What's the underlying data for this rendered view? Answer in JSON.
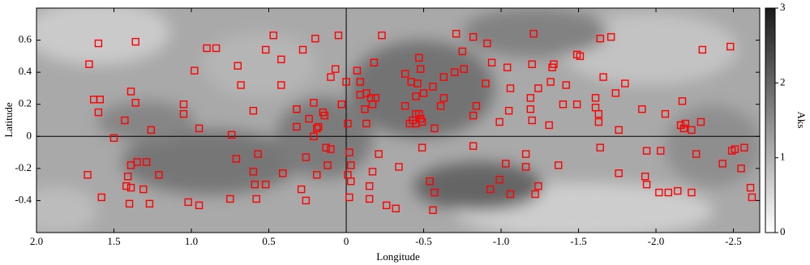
{
  "chart_data": {
    "type": "scatter",
    "x_label": "Longitude",
    "y_label": "Latitude",
    "xlim": [
      2.0,
      -2.67
    ],
    "ylim": [
      -0.6,
      0.8
    ],
    "xticks": [
      {
        "value": 2.0,
        "label": "2.0"
      },
      1.5,
      {
        "value": 1.0,
        "label": "1.0"
      },
      0.5,
      0,
      -0.5,
      {
        "value": -1.0,
        "label": "-1.0"
      },
      -1.5,
      {
        "value": -2.0,
        "label": "-2.0"
      },
      -2.5
    ],
    "yticks": [
      -0.4,
      -0.2,
      0,
      0.2,
      0.4,
      0.6
    ],
    "colorbar_label": "Aks",
    "clim": [
      0,
      3
    ],
    "colorbar_ticks": [
      0,
      1,
      2,
      3
    ],
    "series": [
      {
        "color": "#ff0000",
        "x": [
          1.66,
          1.6,
          1.63,
          1.59,
          1.6,
          1.67,
          1.58,
          1.5,
          1.43,
          1.39,
          1.36,
          1.36,
          1.35,
          1.29,
          1.41,
          1.39,
          1.39,
          1.42,
          1.31,
          1.4,
          1.27,
          1.21,
          1.26,
          0.98,
          1.05,
          1.05,
          0.95,
          1.02,
          0.95,
          0.9,
          0.84,
          0.7,
          0.68,
          0.74,
          0.71,
          0.75,
          0.6,
          0.57,
          0.6,
          0.59,
          0.58,
          0.52,
          0.52,
          0.47,
          0.42,
          0.42,
          0.41,
          0.32,
          0.28,
          0.2,
          0.32,
          0.29,
          0.26,
          0.24,
          0.21,
          0.26,
          0.19,
          0.15,
          0.18,
          0.21,
          0.14,
          0.12,
          0.1,
          0.1,
          0.07,
          0.05,
          0.03,
          0.13,
          0.19,
          0.0,
          -0.01,
          -0.01,
          -0.02,
          -0.02,
          -0.03,
          -0.03,
          -0.07,
          -0.09,
          -0.09,
          -0.13,
          -0.12,
          -0.13,
          -0.17,
          -0.16,
          -0.19,
          -0.21,
          -0.18,
          -0.23,
          -0.15,
          -0.15,
          -0.17,
          -0.26,
          -0.32,
          -0.34,
          -0.38,
          -0.38,
          -0.42,
          -0.45,
          -0.46,
          -0.45,
          -0.43,
          -0.48,
          -0.45,
          -0.41,
          -0.47,
          -0.47,
          -0.48,
          -0.5,
          -0.49,
          -0.49,
          -0.56,
          -0.57,
          -0.61,
          -0.63,
          -0.63,
          -0.54,
          -0.57,
          -0.56,
          -0.71,
          -0.75,
          -0.76,
          -0.7,
          -0.82,
          -0.82,
          -0.82,
          -0.84,
          -0.9,
          -0.91,
          -0.94,
          -0.93,
          -0.99,
          -1.03,
          -1.05,
          -1.04,
          -1.06,
          -1.06,
          -0.99,
          -1.16,
          -1.16,
          -1.19,
          -1.2,
          -1.19,
          -1.21,
          -1.2,
          -1.24,
          -1.22,
          -1.24,
          -1.31,
          -1.32,
          -1.33,
          -1.34,
          -1.37,
          -1.4,
          -1.42,
          -1.49,
          -1.51,
          -1.49,
          -1.61,
          -1.61,
          -1.63,
          -1.63,
          -1.64,
          -1.64,
          -1.66,
          -1.71,
          -1.74,
          -1.76,
          -1.8,
          -1.76,
          -1.91,
          -1.94,
          -1.93,
          -1.94,
          -2.02,
          -2.03,
          -2.06,
          -2.08,
          -2.14,
          -2.16,
          -2.17,
          -2.18,
          -2.19,
          -2.23,
          -2.23,
          -2.26,
          -2.3,
          -2.29,
          -2.48,
          -2.43,
          -2.49,
          -2.51,
          -2.55,
          -2.57,
          -2.61,
          -2.62
        ],
        "values": [
          0.45,
          0.58,
          0.23,
          0.23,
          0.15,
          -0.24,
          -0.38,
          -0.01,
          0.1,
          0.28,
          0.21,
          0.59,
          -0.16,
          -0.16,
          -0.25,
          -0.18,
          -0.32,
          -0.31,
          -0.33,
          -0.42,
          -0.42,
          -0.24,
          0.04,
          0.41,
          0.2,
          0.14,
          0.05,
          -0.41,
          -0.43,
          0.55,
          0.55,
          0.44,
          0.32,
          0.01,
          -0.14,
          -0.39,
          0.16,
          -0.11,
          -0.22,
          -0.3,
          -0.39,
          -0.3,
          0.54,
          0.63,
          0.48,
          0.32,
          -0.23,
          0.17,
          0.54,
          0.61,
          0.06,
          -0.33,
          -0.13,
          0.11,
          0.21,
          -0.4,
          0.05,
          0.15,
          0.06,
          0,
          0.13,
          -0.18,
          -0.08,
          0.37,
          0.42,
          0.63,
          0.2,
          -0.07,
          -0.24,
          0.34,
          0.08,
          -0.24,
          -0.38,
          -0.1,
          -0.28,
          -0.18,
          0.41,
          0.34,
          0.26,
          0.27,
          0.17,
          0.08,
          0.2,
          0.24,
          0.24,
          -0.11,
          0.46,
          0.63,
          -0.39,
          -0.31,
          -0.22,
          -0.43,
          -0.45,
          -0.19,
          0.39,
          0.19,
          0.34,
          0.25,
          0.33,
          0.14,
          0.1,
          0.11,
          0.08,
          0.08,
          0.14,
          0.49,
          0.42,
          0.27,
          -0.07,
          0.09,
          0.31,
          0.05,
          0.19,
          0.24,
          0.37,
          -0.28,
          -0.35,
          -0.46,
          0.64,
          0.53,
          0.42,
          0.4,
          0.62,
          0.13,
          -0.06,
          0.19,
          0.33,
          0.58,
          0.46,
          -0.33,
          0.09,
          -0.17,
          0.16,
          0.43,
          0.3,
          -0.36,
          -0.27,
          -0.11,
          -0.19,
          0.17,
          0.1,
          0.24,
          0.64,
          0.45,
          0.3,
          -0.36,
          -0.31,
          0.07,
          0.34,
          0.43,
          0.45,
          -0.18,
          0.2,
          0.32,
          0.51,
          0.5,
          0.2,
          0.24,
          0.18,
          0.14,
          0.09,
          -0.07,
          0.61,
          0.37,
          0.62,
          0.27,
          0.04,
          0.33,
          -0.23,
          0.17,
          -0.09,
          -0.25,
          -0.3,
          -0.35,
          -0.09,
          0.14,
          -0.35,
          -0.34,
          0.07,
          0.22,
          0.05,
          0.08,
          -0.35,
          0.04,
          -0.11,
          0.54,
          0.09,
          0.56,
          -0.17,
          -0.09,
          -0.08,
          -0.2,
          -0.07,
          -0.32,
          -0.38
        ]
      }
    ]
  }
}
